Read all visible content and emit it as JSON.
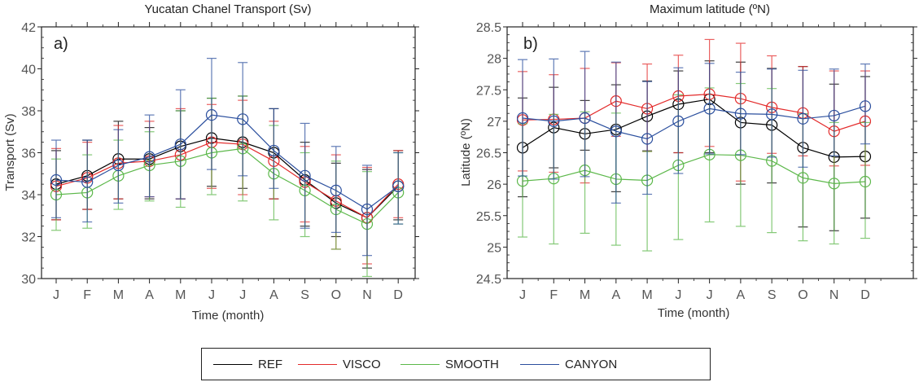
{
  "chart_data": [
    {
      "type": "line",
      "title": "Yucatan Chanel Transport (Sv)",
      "panel_label": "a)",
      "xlabel": "Time (month)",
      "ylabel": "Transport (Sv)",
      "categories": [
        "J",
        "F",
        "M",
        "A",
        "M",
        "J",
        "J",
        "A",
        "S",
        "O",
        "N",
        "D"
      ],
      "ylim": [
        30,
        42
      ],
      "yticks": [
        "30",
        "32",
        "34",
        "36",
        "38",
        "40",
        "42"
      ],
      "grid": false,
      "series": [
        {
          "name": "REF",
          "color": "#000000",
          "values": [
            34.5,
            34.9,
            35.7,
            35.7,
            36.3,
            36.7,
            36.5,
            36.0,
            34.7,
            33.6,
            32.9,
            34.4
          ],
          "err_low": [
            32.8,
            33.3,
            33.8,
            33.8,
            33.8,
            34.4,
            34.3,
            33.8,
            32.5,
            32.0,
            30.5,
            32.8
          ],
          "err_high": [
            36.1,
            36.6,
            37.5,
            37.2,
            38.0,
            38.6,
            38.7,
            38.1,
            36.5,
            35.5,
            35.2,
            36.1
          ]
        },
        {
          "name": "VISCO",
          "color": "#e32b2b",
          "values": [
            34.4,
            34.8,
            35.5,
            35.6,
            35.9,
            36.5,
            36.4,
            35.6,
            34.6,
            33.7,
            32.9,
            34.5
          ],
          "err_low": [
            32.8,
            33.3,
            33.8,
            33.9,
            33.8,
            34.3,
            34.0,
            33.8,
            32.7,
            31.4,
            30.7,
            32.9
          ],
          "err_high": [
            36.2,
            36.5,
            37.3,
            37.5,
            38.1,
            38.3,
            38.5,
            37.5,
            36.3,
            35.9,
            35.3,
            36.1
          ]
        },
        {
          "name": "SMOOTH",
          "color": "#5cb84a",
          "values": [
            34.0,
            34.1,
            34.9,
            35.4,
            35.6,
            36.0,
            36.2,
            35.0,
            34.2,
            33.3,
            32.6,
            34.1
          ],
          "err_low": [
            32.3,
            32.4,
            33.3,
            33.7,
            33.4,
            34.0,
            33.7,
            32.8,
            32.0,
            31.4,
            30.1,
            32.6
          ],
          "err_high": [
            35.7,
            35.9,
            36.6,
            37.0,
            38.0,
            38.6,
            38.7,
            37.3,
            36.0,
            35.6,
            35.1,
            36.0
          ]
        },
        {
          "name": "CANYON",
          "color": "#2b4f9e",
          "values": [
            34.7,
            34.6,
            35.4,
            35.8,
            36.4,
            37.8,
            37.6,
            36.1,
            34.9,
            34.2,
            33.3,
            34.4
          ],
          "err_low": [
            32.9,
            32.7,
            33.6,
            33.9,
            33.8,
            35.2,
            34.9,
            34.3,
            32.4,
            32.2,
            31.1,
            32.6
          ],
          "err_high": [
            36.6,
            36.6,
            37.1,
            37.8,
            39.0,
            40.5,
            40.3,
            38.1,
            37.4,
            36.3,
            35.4,
            36.0
          ]
        }
      ]
    },
    {
      "type": "line",
      "title": "Maximum latitude (ºN)",
      "panel_label": "b)",
      "xlabel": "Time (month)",
      "ylabel": "Latitude (ºN)",
      "categories": [
        "J",
        "F",
        "M",
        "A",
        "M",
        "J",
        "J",
        "A",
        "S",
        "O",
        "N",
        "D"
      ],
      "ylim": [
        24.5,
        28.5
      ],
      "yticks": [
        "24.5",
        "25",
        "25.5",
        "26",
        "26.5",
        "27",
        "27.5",
        "28",
        "28.5"
      ],
      "grid": false,
      "series": [
        {
          "name": "REF",
          "color": "#000000",
          "values": [
            26.58,
            26.9,
            26.8,
            26.87,
            27.08,
            27.27,
            27.35,
            26.98,
            26.94,
            26.58,
            26.43,
            26.44
          ],
          "err_low": [
            25.8,
            26.26,
            26.54,
            25.88,
            26.53,
            26.5,
            26.5,
            26.0,
            26.02,
            25.32,
            25.26,
            25.46
          ],
          "err_high": [
            27.37,
            27.54,
            27.33,
            27.58,
            27.64,
            27.8,
            27.96,
            27.94,
            27.84,
            27.87,
            27.59,
            27.71
          ]
        },
        {
          "name": "VISCO",
          "color": "#e32b2b",
          "values": [
            27.02,
            27.03,
            27.05,
            27.32,
            27.2,
            27.4,
            27.43,
            27.36,
            27.22,
            27.13,
            26.84,
            27.0
          ],
          "err_low": [
            26.21,
            26.19,
            26.02,
            26.76,
            26.52,
            26.5,
            26.6,
            26.05,
            26.49,
            26.45,
            26.29,
            26.3
          ],
          "err_high": [
            27.79,
            27.74,
            27.84,
            27.93,
            27.91,
            28.05,
            28.3,
            28.24,
            28.04,
            27.87,
            27.8,
            27.8
          ]
        },
        {
          "name": "SMOOTH",
          "color": "#5cb84a",
          "values": [
            26.05,
            26.09,
            26.22,
            26.08,
            26.06,
            26.3,
            26.47,
            26.46,
            26.37,
            26.1,
            26.01,
            26.04
          ],
          "err_low": [
            25.16,
            25.05,
            25.22,
            25.03,
            24.94,
            25.12,
            25.4,
            25.33,
            25.23,
            25.1,
            25.05,
            25.14
          ],
          "err_high": [
            26.96,
            27.11,
            27.15,
            27.13,
            26.52,
            27.42,
            27.53,
            27.6,
            27.52,
            27.12,
            26.98,
            26.98
          ]
        },
        {
          "name": "CANYON",
          "color": "#2b4f9e",
          "values": [
            27.05,
            27.0,
            27.05,
            26.84,
            26.72,
            27.0,
            27.2,
            27.12,
            27.11,
            27.04,
            27.09,
            27.24
          ],
          "err_low": [
            26.13,
            26.08,
            26.12,
            25.7,
            25.84,
            26.17,
            26.48,
            26.47,
            26.43,
            26.27,
            26.45,
            26.64
          ],
          "err_high": [
            27.98,
            27.99,
            28.11,
            27.94,
            27.63,
            27.85,
            27.92,
            27.78,
            27.83,
            27.81,
            27.83,
            27.91
          ]
        }
      ]
    }
  ],
  "legend": {
    "placement": "bottom-center",
    "items": [
      {
        "label": "REF",
        "color": "#000000"
      },
      {
        "label": "VISCO",
        "color": "#e32b2b"
      },
      {
        "label": "SMOOTH",
        "color": "#5cb84a"
      },
      {
        "label": "CANYON",
        "color": "#2b4f9e"
      }
    ]
  }
}
